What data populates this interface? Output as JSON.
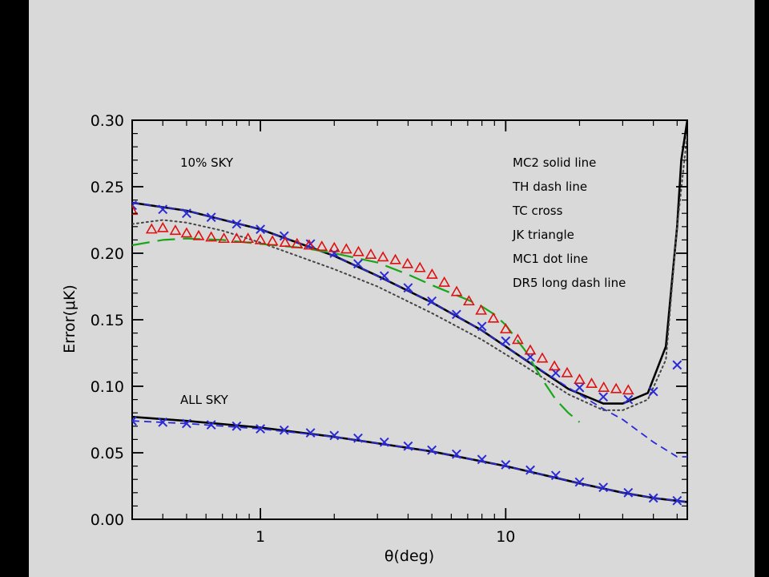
{
  "chart_data": {
    "type": "line",
    "xscale": "log",
    "xlim": [
      0.3,
      55
    ],
    "ylim": [
      0.0,
      0.3
    ],
    "xlabel": "θ(deg)",
    "ylabel": "Error(μK)",
    "x_ticks": [
      {
        "value": 1,
        "label": "1"
      },
      {
        "value": 10,
        "label": "10"
      }
    ],
    "y_ticks": [
      {
        "value": 0.0,
        "label": "0.00"
      },
      {
        "value": 0.05,
        "label": "0.05"
      },
      {
        "value": 0.1,
        "label": "0.10"
      },
      {
        "value": 0.15,
        "label": "0.15"
      },
      {
        "value": 0.2,
        "label": "0.20"
      },
      {
        "value": 0.25,
        "label": "0.25"
      },
      {
        "value": 0.3,
        "label": "0.30"
      }
    ],
    "legend_text": [
      "MC2 solid line",
      "TH dash line",
      "TC cross",
      "JK triangle",
      "MC1 dot line",
      "DR5 long dash line"
    ],
    "annotations": [
      "10% SKY",
      "ALL SKY"
    ],
    "colors": {
      "mc2": "#000000",
      "th": "#2a2ad6",
      "tc": "#2a2ad6",
      "jk": "#e01010",
      "mc1": "#444444",
      "dr5": "#1aa61a"
    },
    "series": [
      {
        "name": "MC2 solid line",
        "style": "solid",
        "color": "#000000",
        "group": "10% SKY",
        "x": [
          0.3,
          0.5,
          1.0,
          2.0,
          3.0,
          5.0,
          8.0,
          12.0,
          18.0,
          25.0,
          30.0,
          38.0,
          45.0,
          50.0,
          52.0,
          55.0
        ],
        "y": [
          0.238,
          0.232,
          0.218,
          0.198,
          0.183,
          0.163,
          0.142,
          0.12,
          0.098,
          0.087,
          0.087,
          0.095,
          0.13,
          0.22,
          0.27,
          0.3
        ]
      },
      {
        "name": "MC2 solid line",
        "style": "solid",
        "color": "#000000",
        "group": "ALL SKY",
        "x": [
          0.3,
          0.5,
          1.0,
          2.0,
          5.0,
          10.0,
          20.0,
          30.0,
          40.0,
          55.0
        ],
        "y": [
          0.077,
          0.074,
          0.069,
          0.062,
          0.051,
          0.04,
          0.027,
          0.02,
          0.016,
          0.013
        ]
      },
      {
        "name": "TH dash line",
        "style": "dash",
        "color": "#2a2ad6",
        "group": "10% SKY",
        "x": [
          0.3,
          0.5,
          1.0,
          2.0,
          3.0,
          5.0,
          8.0,
          12.0,
          18.0,
          25.0,
          30.0,
          40.0,
          50.0,
          55.0
        ],
        "y": [
          0.238,
          0.232,
          0.218,
          0.198,
          0.183,
          0.163,
          0.142,
          0.12,
          0.099,
          0.083,
          0.075,
          0.058,
          0.047,
          0.047
        ]
      },
      {
        "name": "TH dash line",
        "style": "dash",
        "color": "#2a2ad6",
        "group": "ALL SKY",
        "x": [
          0.3,
          0.5,
          1.0,
          2.0,
          5.0,
          10.0,
          20.0,
          30.0,
          40.0,
          55.0
        ],
        "y": [
          0.074,
          0.072,
          0.068,
          0.062,
          0.051,
          0.04,
          0.027,
          0.02,
          0.016,
          0.013
        ]
      },
      {
        "name": "MC1 dot line",
        "style": "dot",
        "color": "#444444",
        "group": "10% SKY",
        "x": [
          0.3,
          0.4,
          0.5,
          0.7,
          1.0,
          2.0,
          3.0,
          5.0,
          8.0,
          12.0,
          18.0,
          25.0,
          30.0,
          38.0,
          45.0,
          50.0,
          55.0
        ],
        "y": [
          0.222,
          0.225,
          0.223,
          0.217,
          0.208,
          0.188,
          0.175,
          0.155,
          0.135,
          0.115,
          0.094,
          0.082,
          0.082,
          0.09,
          0.12,
          0.22,
          0.29
        ]
      },
      {
        "name": "DR5 long dash line",
        "style": "longdash",
        "color": "#1aa61a",
        "group": "10% SKY",
        "x": [
          0.3,
          0.4,
          0.5,
          0.7,
          1.0,
          1.5,
          2.0,
          3.0,
          4.0,
          5.0,
          6.0,
          7.0,
          8.0,
          9.0,
          10.0,
          12.0,
          14.0,
          16.0,
          18.0,
          20.0
        ],
        "y": [
          0.206,
          0.21,
          0.211,
          0.21,
          0.207,
          0.204,
          0.2,
          0.193,
          0.184,
          0.176,
          0.17,
          0.165,
          0.16,
          0.154,
          0.146,
          0.127,
          0.106,
          0.09,
          0.08,
          0.073
        ]
      }
    ],
    "markers": [
      {
        "name": "TC cross",
        "symbol": "x",
        "color": "#2a2ad6",
        "group": "10% SKY",
        "x": [
          0.3,
          0.4,
          0.5,
          0.63,
          0.8,
          1.0,
          1.25,
          1.6,
          2.0,
          2.5,
          3.2,
          4.0,
          5.0,
          6.3,
          8.0,
          10.0,
          12.6,
          16.0,
          20.0,
          25.0,
          31.6,
          40.0,
          50.0
        ],
        "y": [
          0.236,
          0.233,
          0.23,
          0.227,
          0.222,
          0.218,
          0.213,
          0.207,
          0.2,
          0.192,
          0.183,
          0.174,
          0.164,
          0.154,
          0.145,
          0.134,
          0.122,
          0.11,
          0.099,
          0.092,
          0.09,
          0.096,
          0.116
        ]
      },
      {
        "name": "TC cross",
        "symbol": "x",
        "color": "#2a2ad6",
        "group": "ALL SKY",
        "x": [
          0.3,
          0.4,
          0.5,
          0.63,
          0.8,
          1.0,
          1.25,
          1.6,
          2.0,
          2.5,
          3.2,
          4.0,
          5.0,
          6.3,
          8.0,
          10.0,
          12.6,
          16.0,
          20.0,
          25.0,
          31.6,
          40.0,
          50.0
        ],
        "y": [
          0.074,
          0.073,
          0.072,
          0.071,
          0.07,
          0.068,
          0.067,
          0.065,
          0.063,
          0.061,
          0.058,
          0.055,
          0.052,
          0.049,
          0.045,
          0.041,
          0.037,
          0.033,
          0.028,
          0.024,
          0.02,
          0.016,
          0.014
        ]
      },
      {
        "name": "JK triangle",
        "symbol": "triangle",
        "color": "#e01010",
        "group": "10% SKY",
        "x": [
          0.3,
          0.36,
          0.4,
          0.45,
          0.5,
          0.56,
          0.63,
          0.71,
          0.8,
          0.89,
          1.0,
          1.12,
          1.26,
          1.41,
          1.58,
          1.78,
          2.0,
          2.24,
          2.51,
          2.82,
          3.16,
          3.55,
          3.98,
          4.47,
          5.01,
          5.62,
          6.31,
          7.08,
          7.94,
          8.91,
          10.0,
          11.2,
          12.6,
          14.1,
          15.8,
          17.8,
          20.0,
          22.4,
          25.1,
          28.2,
          31.6
        ],
        "y": [
          0.232,
          0.218,
          0.219,
          0.217,
          0.215,
          0.213,
          0.212,
          0.211,
          0.211,
          0.211,
          0.21,
          0.209,
          0.208,
          0.207,
          0.206,
          0.205,
          0.204,
          0.203,
          0.201,
          0.199,
          0.197,
          0.195,
          0.192,
          0.189,
          0.184,
          0.178,
          0.171,
          0.164,
          0.157,
          0.151,
          0.143,
          0.135,
          0.127,
          0.121,
          0.115,
          0.11,
          0.105,
          0.102,
          0.099,
          0.098,
          0.097
        ]
      }
    ]
  }
}
